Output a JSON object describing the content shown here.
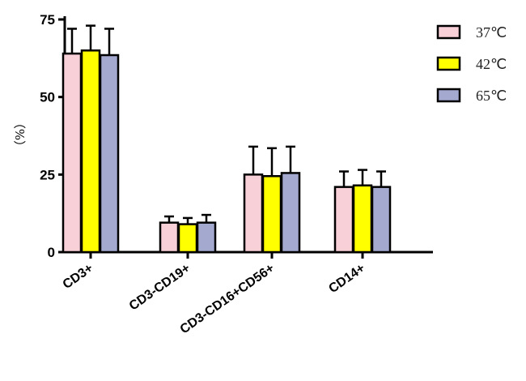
{
  "chart_data": {
    "type": "bar",
    "title": "",
    "xlabel": "",
    "ylabel": "（%）",
    "ylim": [
      0,
      75
    ],
    "yticks": [
      0,
      25,
      50,
      75
    ],
    "categories": [
      "CD3+",
      "CD3-CD19+",
      "CD3-CD16+CD56+",
      "CD14+"
    ],
    "series": [
      {
        "name": "37℃",
        "color": "#f7d0d8",
        "values": [
          64,
          9.5,
          25,
          21
        ],
        "errors": [
          8,
          2,
          9,
          5
        ]
      },
      {
        "name": "42℃",
        "color": "#ffff00",
        "values": [
          65,
          9,
          24.5,
          21.5
        ],
        "errors": [
          8,
          2,
          9,
          5
        ]
      },
      {
        "name": "65℃",
        "color": "#a3a9cf",
        "values": [
          63.5,
          9.5,
          25.5,
          21
        ],
        "errors": [
          8.5,
          2.5,
          8.5,
          5
        ]
      }
    ],
    "legend_position": "top-right",
    "grid": false
  }
}
